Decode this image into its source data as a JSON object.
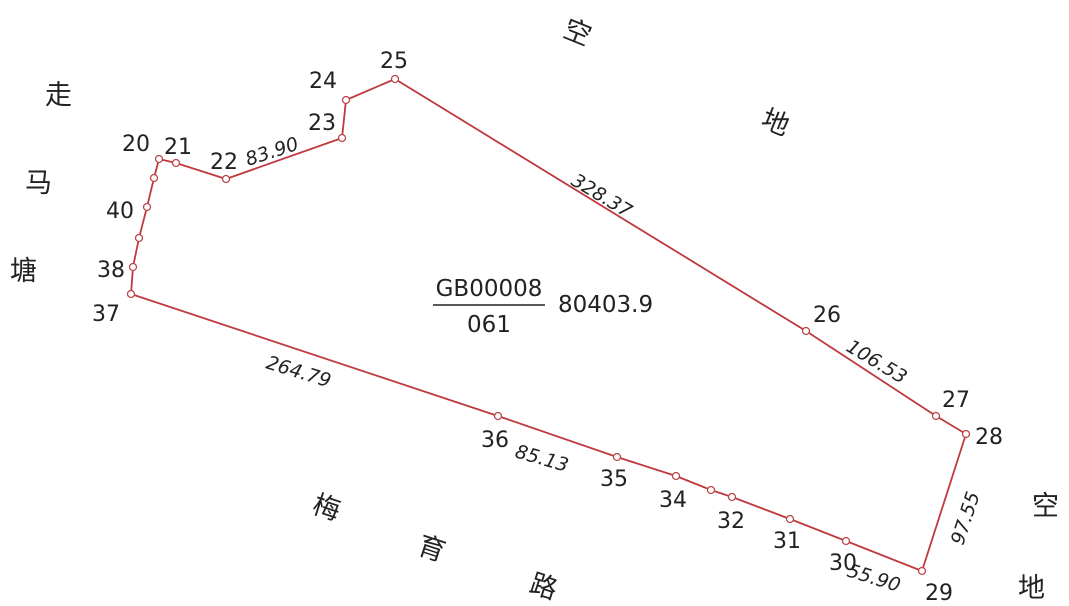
{
  "parcel": {
    "code": "GB00008",
    "number": "061",
    "area": "80403.9",
    "boundary_color": "#c0393d"
  },
  "vertices": [
    {
      "id": "v20",
      "label": "20"
    },
    {
      "id": "v21",
      "label": "21"
    },
    {
      "id": "v22",
      "label": "22"
    },
    {
      "id": "v23",
      "label": "23"
    },
    {
      "id": "v24",
      "label": "24"
    },
    {
      "id": "v25",
      "label": "25"
    },
    {
      "id": "v26",
      "label": "26"
    },
    {
      "id": "v27",
      "label": "27"
    },
    {
      "id": "v28",
      "label": "28"
    },
    {
      "id": "v29",
      "label": "29"
    },
    {
      "id": "v30",
      "label": "30"
    },
    {
      "id": "v31",
      "label": "31"
    },
    {
      "id": "v32",
      "label": "32"
    },
    {
      "id": "v34",
      "label": "34"
    },
    {
      "id": "v35",
      "label": "35"
    },
    {
      "id": "v36",
      "label": "36"
    },
    {
      "id": "v37",
      "label": "37"
    },
    {
      "id": "v38",
      "label": "38"
    },
    {
      "id": "v40",
      "label": "40"
    }
  ],
  "edge_lengths": [
    {
      "id": "e22-23",
      "value": "83.90"
    },
    {
      "id": "e25-26",
      "value": "328.37"
    },
    {
      "id": "e26-27",
      "value": "106.53"
    },
    {
      "id": "e28-29",
      "value": "97.55"
    },
    {
      "id": "e29-30",
      "value": "55.90"
    },
    {
      "id": "e35-36",
      "value": "85.13"
    },
    {
      "id": "e36-37",
      "value": "264.79"
    }
  ],
  "place_names": {
    "left": [
      "走",
      "马",
      "塘"
    ],
    "top": [
      "空",
      "地"
    ],
    "right": [
      "空",
      "地"
    ],
    "bottom": [
      "梅",
      "育",
      "路"
    ]
  }
}
